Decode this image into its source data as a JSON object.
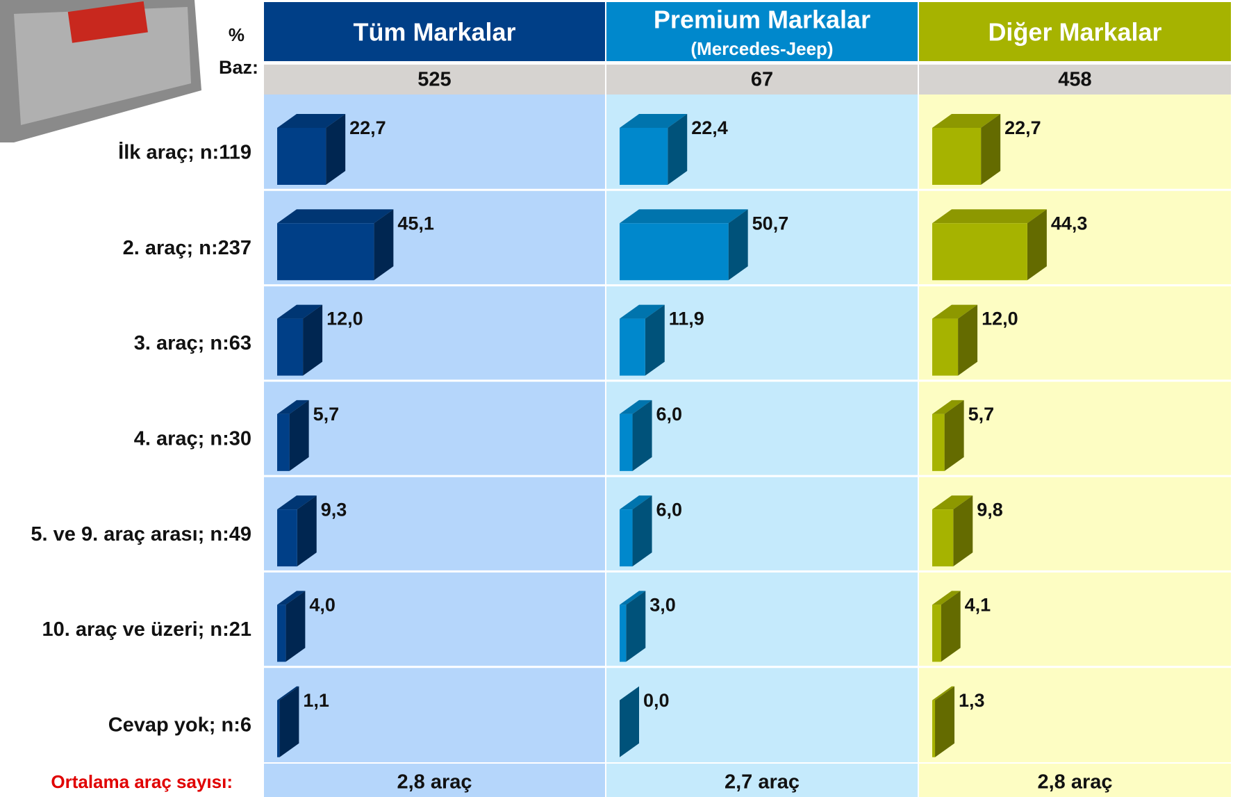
{
  "chart_data": {
    "type": "bar",
    "orientation": "horizontal",
    "percent_label": "%",
    "base_label": "Baz:",
    "average_label": "Ortalama araç sayısı:",
    "categories": [
      "İlk araç; n:119",
      "2. araç; n:237",
      "3. araç; n:63",
      "4. araç; n:30",
      "5. ve 9. araç arası; n:49",
      "10. araç ve üzeri; n:21",
      "Cevap yok; n:6"
    ],
    "series": [
      {
        "name": "Tüm Markalar",
        "color": "#003f87",
        "base": 525,
        "average": "2,8  araç",
        "values": [
          22.7,
          45.1,
          12.0,
          5.7,
          9.3,
          4.0,
          1.1
        ],
        "value_labels": [
          "22,7",
          "45,1",
          "12,0",
          "5,7",
          "9,3",
          "4,0",
          "1,1"
        ]
      },
      {
        "name": "Premium Markalar",
        "subtitle": "(Mercedes-Jeep)",
        "color": "#0088cc",
        "base": 67,
        "average": "2,7 araç",
        "values": [
          22.4,
          50.7,
          11.9,
          6.0,
          6.0,
          3.0,
          0.0
        ],
        "value_labels": [
          "22,4",
          "50,7",
          "11,9",
          "6,0",
          "6,0",
          "3,0",
          "0,0"
        ]
      },
      {
        "name": "Diğer Markalar",
        "color": "#a6b300",
        "base": 458,
        "average": "2,8 araç",
        "values": [
          22.7,
          44.3,
          12.0,
          5.7,
          9.8,
          4.1,
          1.3
        ],
        "value_labels": [
          "22,7",
          "44,3",
          "12,0",
          "5,7",
          "9,8",
          "4,1",
          "1,3"
        ]
      }
    ]
  }
}
